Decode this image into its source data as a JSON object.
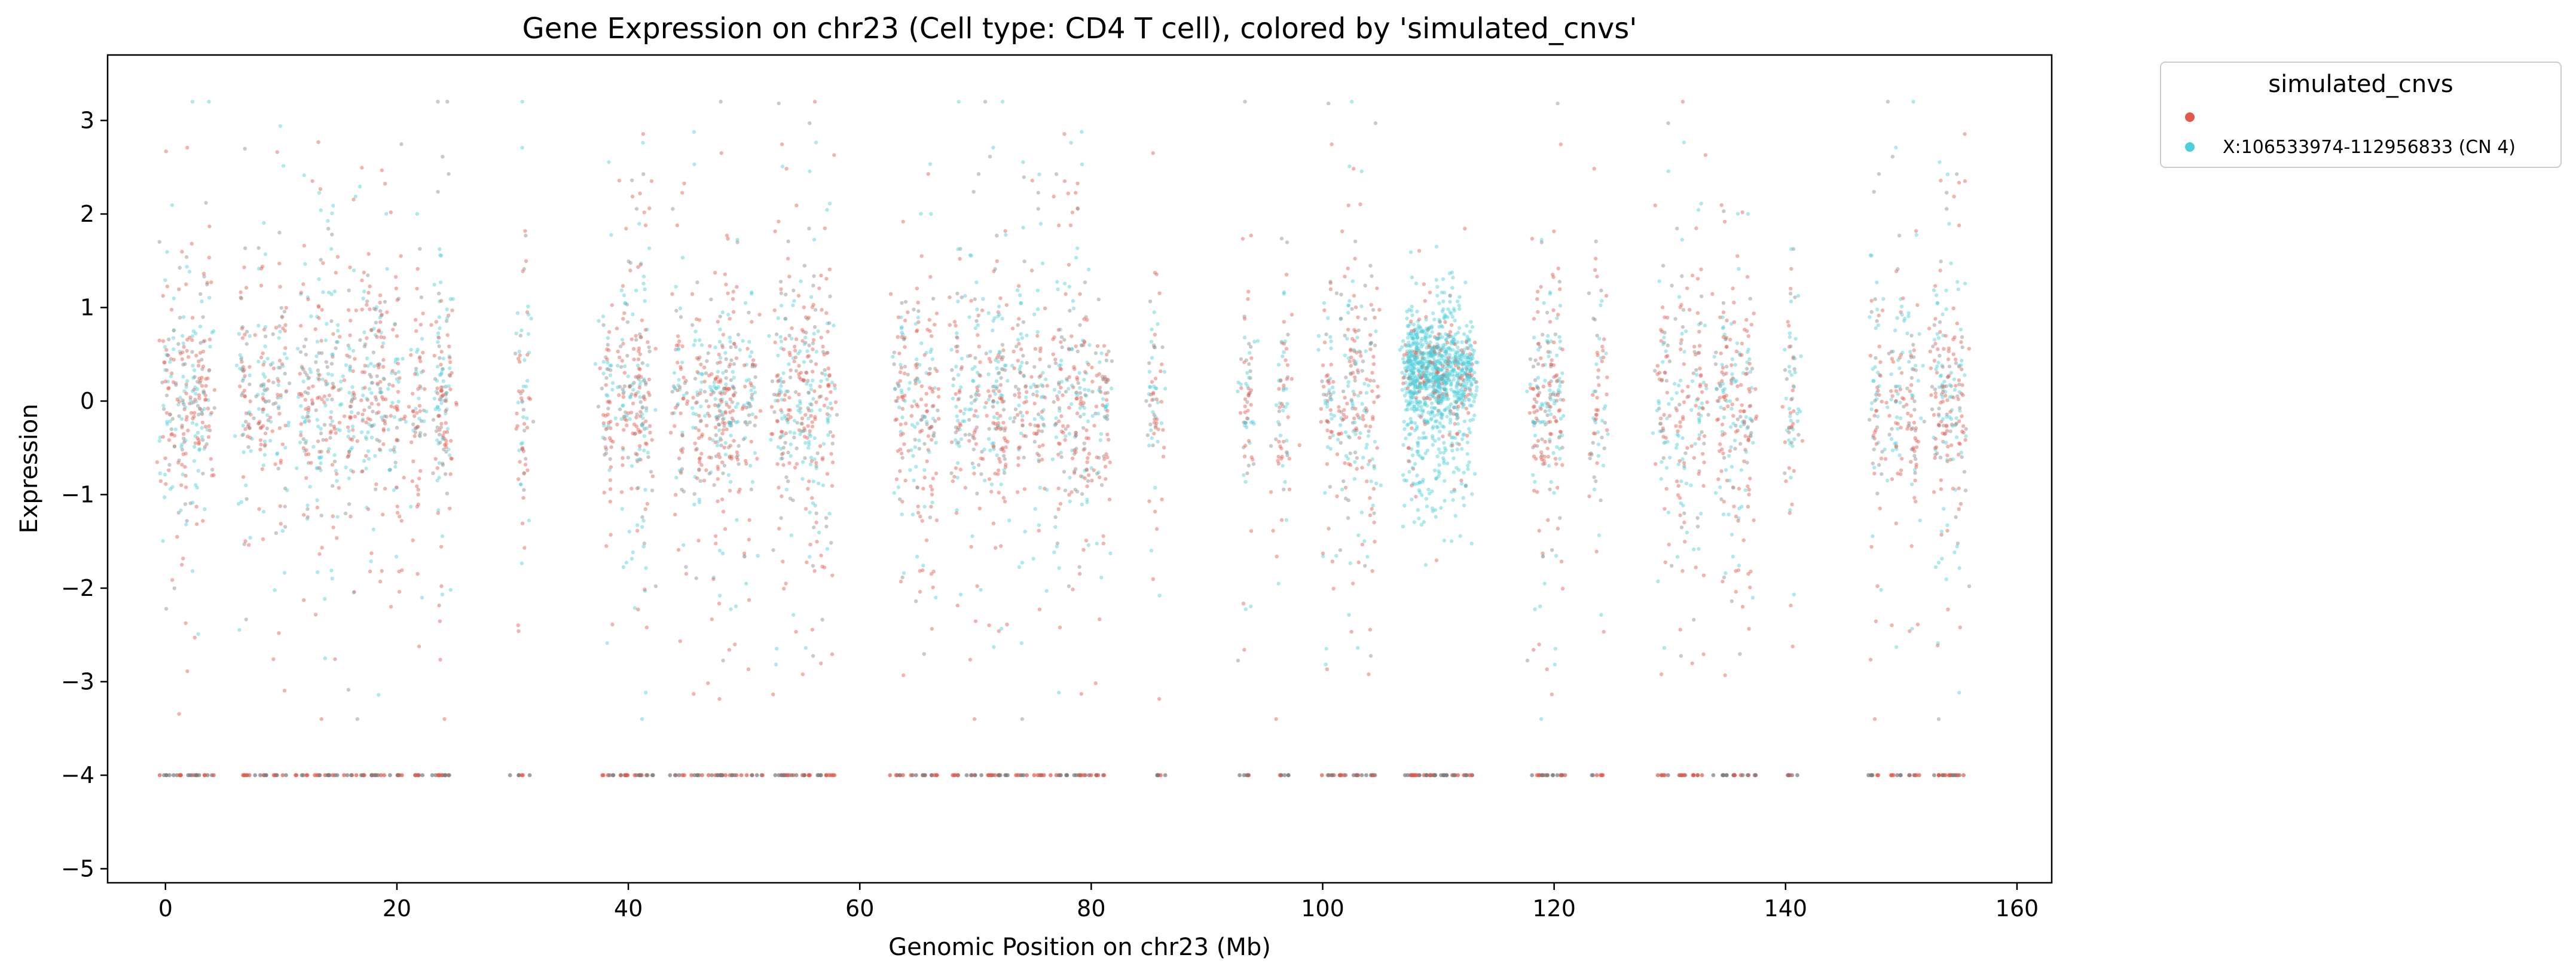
{
  "chart_data": {
    "type": "scatter",
    "title": "Gene Expression on chr23 (Cell type: CD4 T cell), colored by 'simulated_cnvs'",
    "xlabel": "Genomic Position on chr23 (Mb)",
    "ylabel": "Expression",
    "xlim": [
      -5,
      163
    ],
    "ylim": [
      -5.15,
      3.7
    ],
    "x_ticks": [
      0,
      20,
      40,
      60,
      80,
      100,
      120,
      140,
      160
    ],
    "y_ticks": [
      -5,
      -4,
      -3,
      -2,
      -1,
      0,
      1,
      2,
      3
    ],
    "grid": false,
    "legend": {
      "title": "simulated_cnvs",
      "placement": "outside-top-right",
      "entries": [
        {
          "label": "",
          "color": "#e2584a"
        },
        {
          "label": "X:106533974-112956833 (CN 4)",
          "color": "#4ccfd9"
        }
      ]
    },
    "gene_clusters_mb": [
      0.2,
      1.5,
      2.5,
      3.5,
      6.8,
      8.5,
      10,
      12,
      13.3,
      14.5,
      16,
      17.5,
      18.5,
      20,
      21.8,
      23.7,
      24.2,
      30.8,
      38.2,
      39.8,
      40.8,
      41.5,
      44.5,
      46,
      47.5,
      48.2,
      49,
      50.5,
      53,
      54,
      55.3,
      56,
      57.2,
      63.5,
      65,
      66.2,
      68.5,
      70,
      71.5,
      72.3,
      74,
      75.5,
      77.2,
      78.5,
      79.5,
      81,
      85.5,
      93.5,
      96.5,
      100.5,
      102,
      103,
      104.2,
      107.5,
      108.2,
      109,
      109.8,
      110.5,
      111.5,
      112.5,
      118.5,
      119.5,
      120.3,
      123.8,
      129.5,
      131,
      132.5,
      134.5,
      135.5,
      136.8,
      140.5,
      147.8,
      149.5,
      151,
      153.2,
      154,
      155
    ],
    "cnv_region_mb": [
      106.53,
      112.96
    ],
    "zero_value": -4
  }
}
